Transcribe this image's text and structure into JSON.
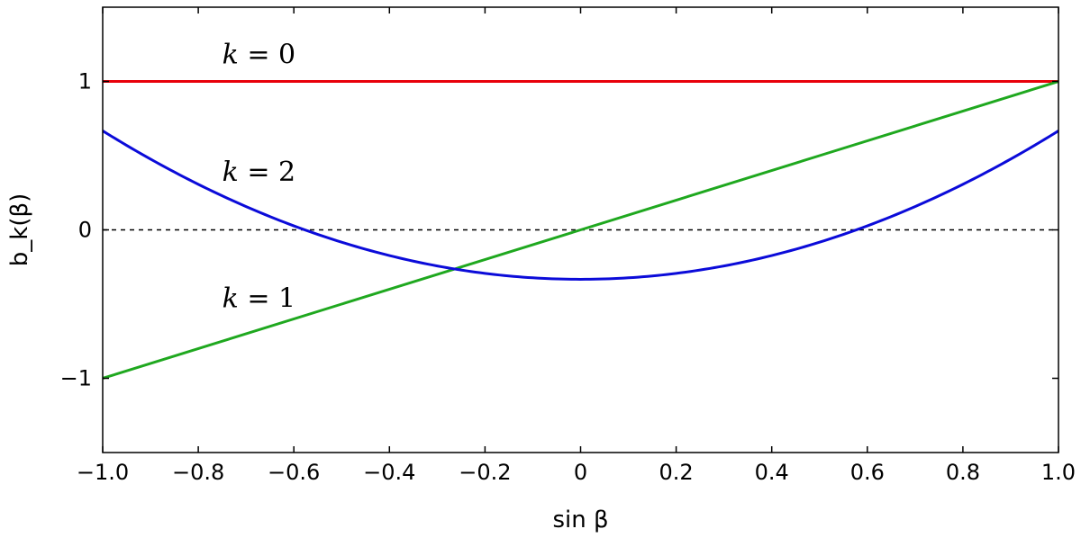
{
  "chart_data": {
    "type": "line",
    "xlabel": "sin β",
    "ylabel": "b_k(β)",
    "xlim": [
      -1.0,
      1.0
    ],
    "ylim": [
      -1.5,
      1.5
    ],
    "xticks": [
      -1.0,
      -0.8,
      -0.6,
      -0.4,
      -0.2,
      0,
      0.2,
      0.4,
      0.6,
      0.8,
      1.0
    ],
    "xtick_labels": [
      "−1.0",
      "−0.8",
      "−0.6",
      "−0.4",
      "−0.2",
      "0",
      "0.2",
      "0.4",
      "0.6",
      "0.8",
      "1.0"
    ],
    "yticks": [
      -1,
      0,
      1
    ],
    "ytick_labels": [
      "−1",
      "0",
      "1"
    ],
    "grid": false,
    "legend": "none",
    "series": [
      {
        "color": "#e8000b",
        "x": [
          -1.0,
          1.0
        ],
        "y": [
          1.0,
          1.0
        ]
      },
      {
        "color": "#1fa81f",
        "x": [
          -1.0,
          -0.5,
          0.0,
          0.5,
          1.0
        ],
        "y": [
          -1.0,
          -0.5,
          0.0,
          0.5,
          1.0
        ]
      },
      {
        "color": "#0b0bd9",
        "x": [
          -1.0,
          -0.9,
          -0.8,
          -0.7,
          -0.6,
          -0.5,
          -0.4,
          -0.3,
          -0.2,
          -0.1,
          0.0,
          0.1,
          0.2,
          0.3,
          0.4,
          0.5,
          0.6,
          0.7,
          0.8,
          0.9,
          1.0
        ],
        "y": [
          0.667,
          0.477,
          0.307,
          0.157,
          0.027,
          -0.083,
          -0.173,
          -0.243,
          -0.293,
          -0.323,
          -0.333,
          -0.323,
          -0.293,
          -0.243,
          -0.173,
          -0.083,
          0.027,
          0.157,
          0.307,
          0.477,
          0.667
        ]
      }
    ],
    "reference_lines": [
      {
        "y": 0,
        "style": "dashed",
        "color": "#000000"
      }
    ],
    "annotations": [
      {
        "var": "k",
        "eq": " = 0",
        "x": -0.75,
        "y": 1.12
      },
      {
        "var": "k",
        "eq": " = 2",
        "x": -0.75,
        "y": 0.33
      },
      {
        "var": "k",
        "eq": " = 1",
        "x": -0.75,
        "y": -0.52
      }
    ]
  }
}
